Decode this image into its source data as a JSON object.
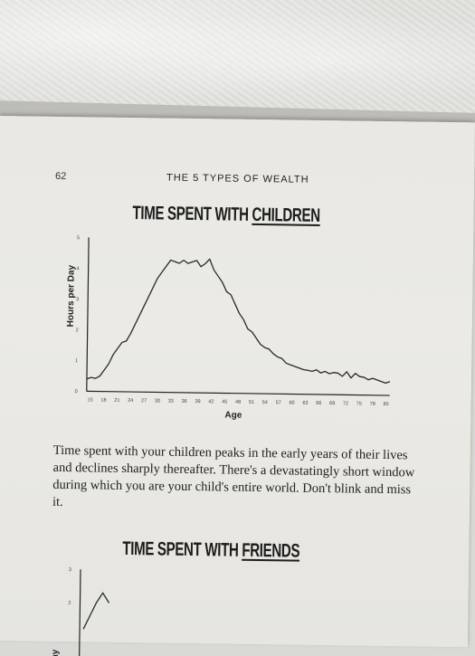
{
  "page": {
    "page_number": "62",
    "running_head": "THE 5 TYPES OF WEALTH",
    "caption": "Time spent with your children peaks in the early years of their lives and declines sharply thereafter. There's a devastatingly short window during which you are your child's entire world. Don't blink and miss it."
  },
  "chart1": {
    "title_prefix": "TIME SPENT WITH ",
    "title_underlined": "CHILDREN"
  },
  "chart2": {
    "title_prefix": "TIME SPENT WITH ",
    "title_underlined": "FRIENDS"
  },
  "chart_data": [
    {
      "type": "line",
      "title": "TIME SPENT WITH CHILDREN",
      "xlabel": "Age",
      "ylabel": "Hours per Day",
      "ylim": [
        0,
        5
      ],
      "xlim": [
        15,
        85
      ],
      "yticks": [
        "0",
        "1",
        "2",
        "3",
        "4",
        "5"
      ],
      "xticks": [
        "15",
        "18",
        "21",
        "24",
        "27",
        "30",
        "33",
        "36",
        "39",
        "42",
        "45",
        "48",
        "51",
        "54",
        "57",
        "60",
        "63",
        "66",
        "69",
        "72",
        "75",
        "78",
        "85"
      ],
      "x": [
        15,
        16,
        17,
        18,
        19,
        20,
        21,
        22,
        23,
        24,
        25,
        26,
        27,
        28,
        29,
        30,
        31,
        32,
        33,
        34,
        35,
        36,
        37,
        38,
        39,
        40,
        41,
        42,
        43,
        44,
        45,
        46,
        47,
        48,
        49,
        50,
        51,
        52,
        53,
        54,
        55,
        56,
        57,
        58,
        59,
        60,
        61,
        62,
        63,
        64,
        65,
        66,
        67,
        68,
        69,
        70,
        71,
        72,
        73,
        74,
        75,
        76,
        77,
        78,
        79,
        80,
        81,
        82,
        83,
        84,
        85
      ],
      "y": [
        0.4,
        0.45,
        0.42,
        0.5,
        0.7,
        0.9,
        1.2,
        1.4,
        1.6,
        1.65,
        1.9,
        2.2,
        2.5,
        2.8,
        3.1,
        3.4,
        3.7,
        3.9,
        4.1,
        4.3,
        4.25,
        4.2,
        4.3,
        4.2,
        4.25,
        4.3,
        4.1,
        4.2,
        4.35,
        4.0,
        3.8,
        3.6,
        3.3,
        3.2,
        2.9,
        2.6,
        2.4,
        2.1,
        2.0,
        1.8,
        1.6,
        1.5,
        1.45,
        1.3,
        1.2,
        1.15,
        1.0,
        0.95,
        0.9,
        0.85,
        0.8,
        0.78,
        0.75,
        0.8,
        0.7,
        0.75,
        0.68,
        0.72,
        0.7,
        0.6,
        0.75,
        0.55,
        0.7,
        0.6,
        0.58,
        0.5,
        0.55,
        0.5,
        0.45,
        0.4,
        0.45
      ]
    },
    {
      "type": "line",
      "title": "TIME SPENT WITH FRIENDS",
      "xlabel": "",
      "ylabel": "Day",
      "ylim": [
        0,
        3
      ],
      "yticks": [
        "2",
        "3"
      ],
      "x": [
        15,
        16,
        17,
        18,
        19
      ],
      "y": [
        1.2,
        1.6,
        2.0,
        2.3,
        2.0
      ]
    }
  ],
  "colors": {
    "line": "#2a2a2a",
    "paper": "#ebeae5",
    "text": "#222222"
  }
}
